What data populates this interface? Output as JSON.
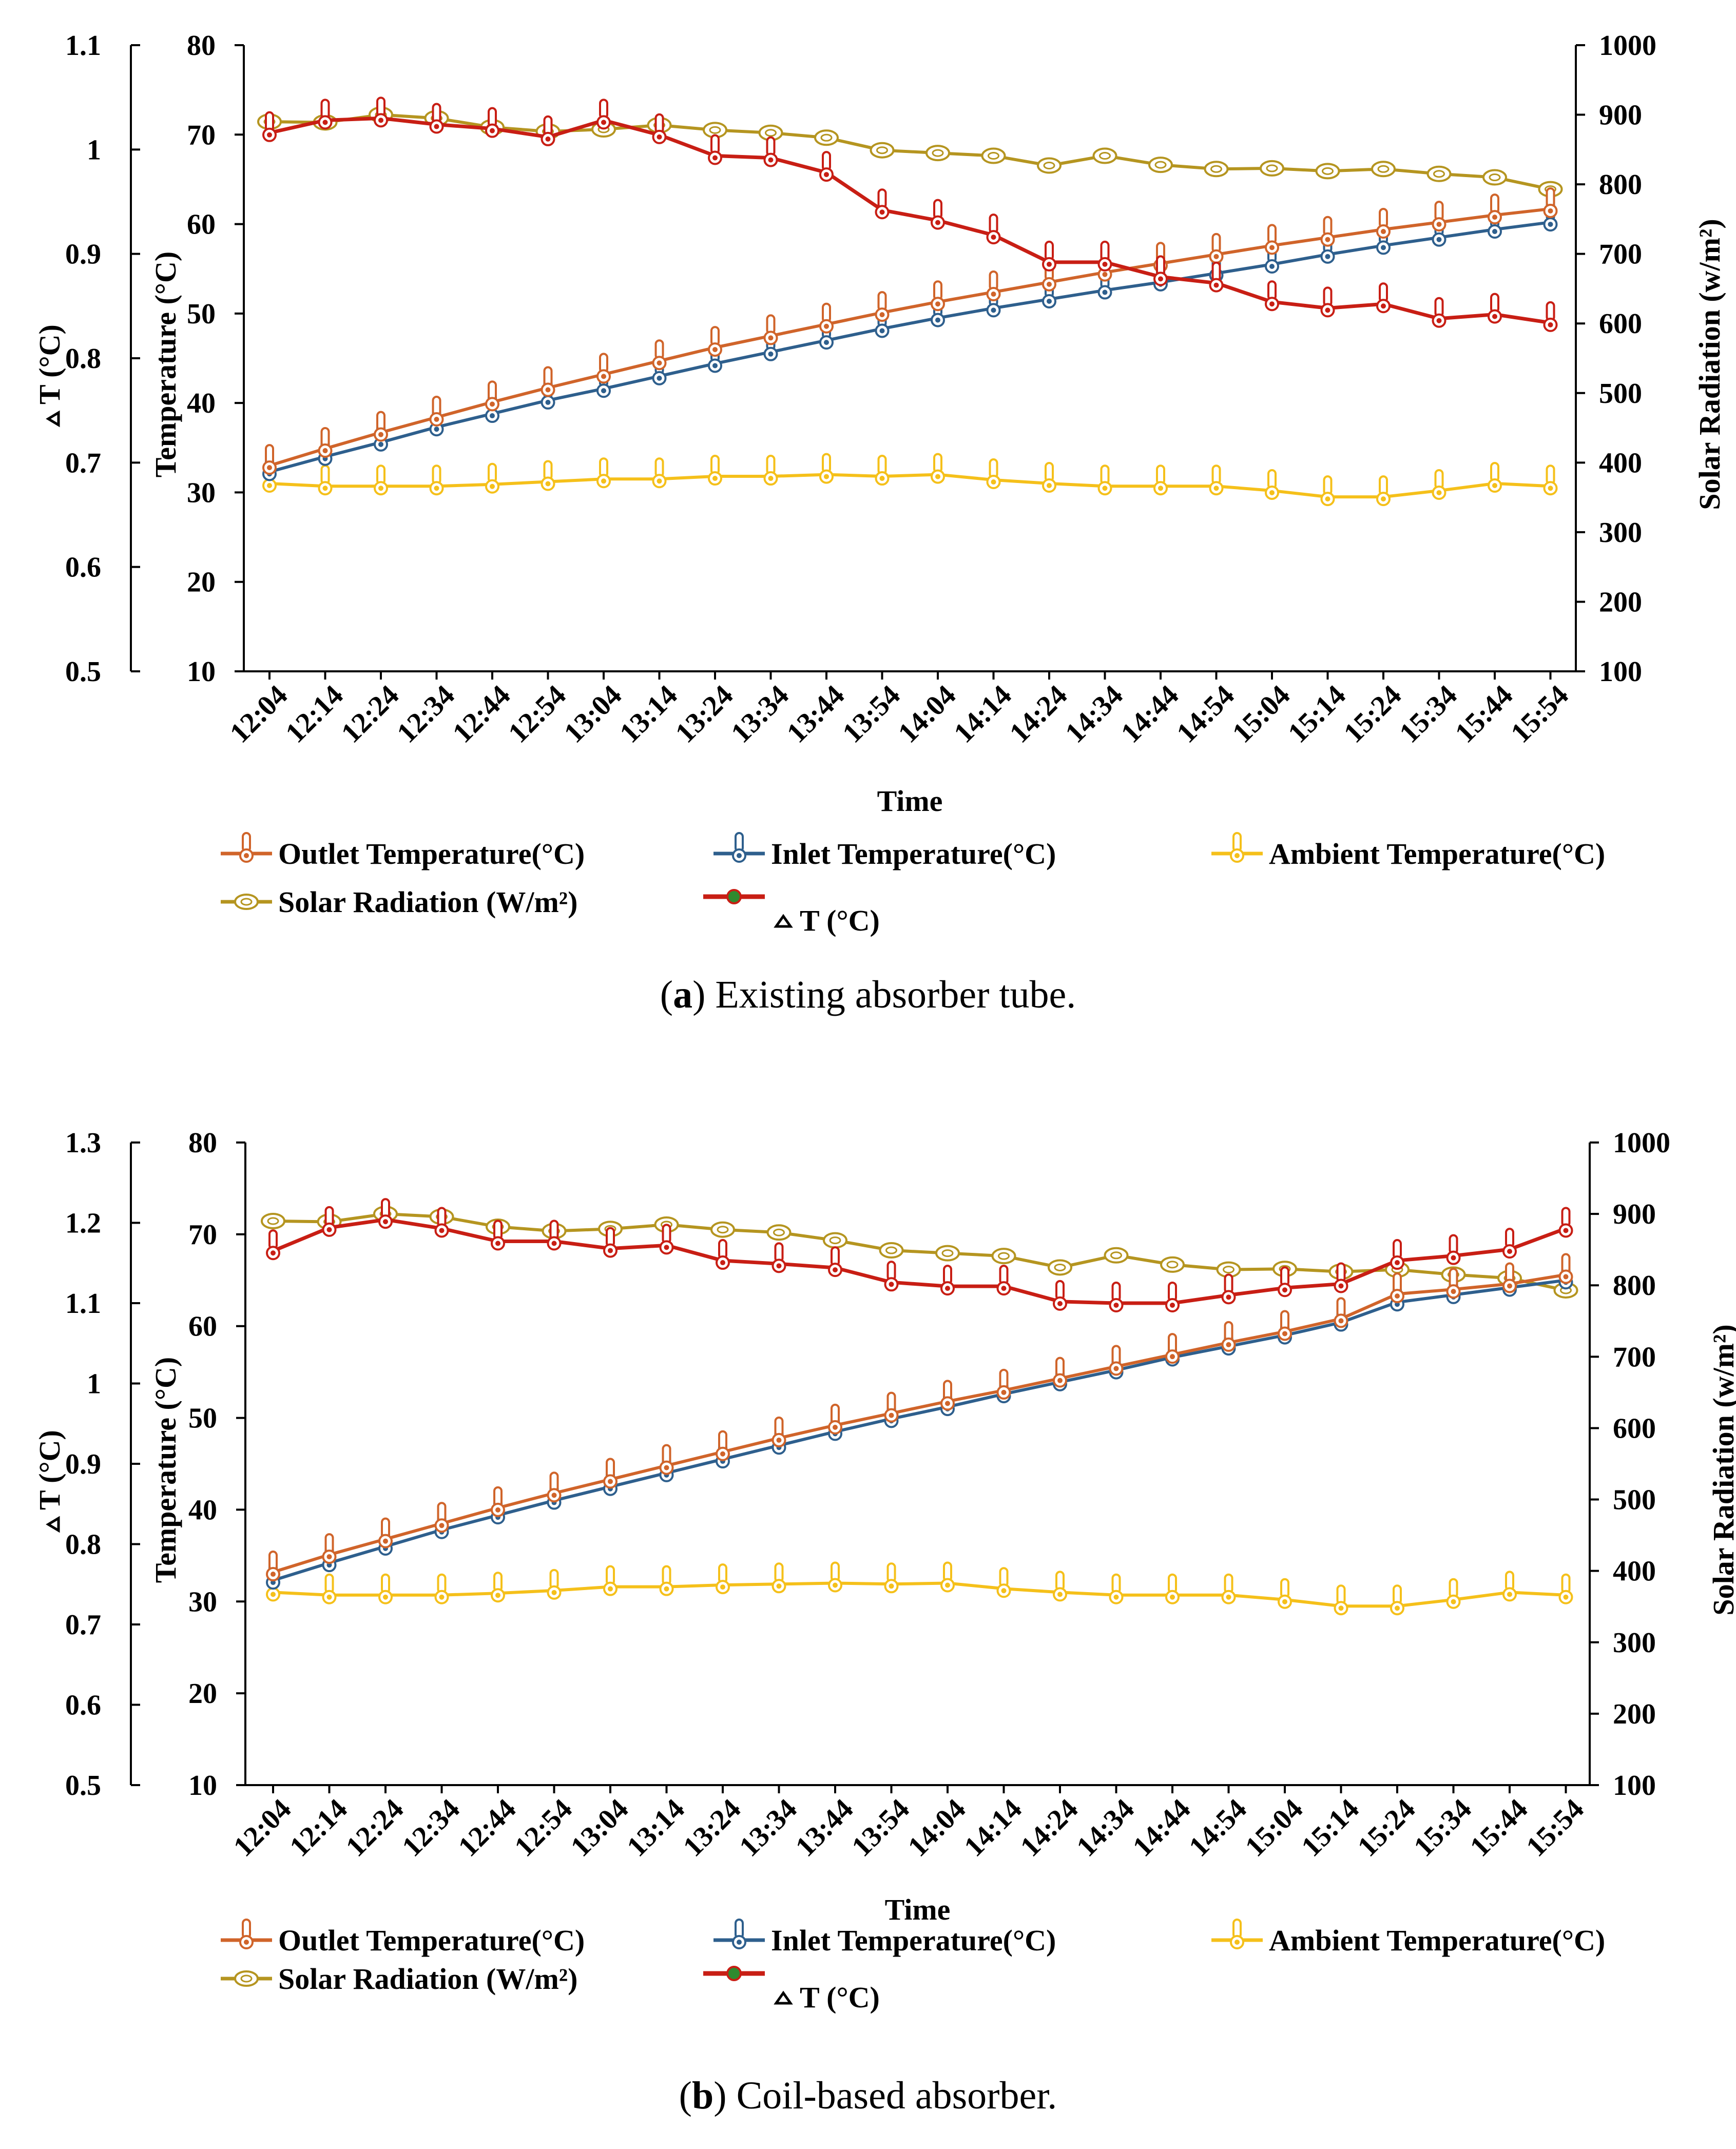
{
  "chart_data": [
    {
      "type": "line",
      "caption_letter": "a",
      "caption_text": ") Existing absorber tube.",
      "xlabel": "Time",
      "ylabel_temp": "Temperature  (°C)",
      "ylabel_dt": "T (°C)",
      "ylabel_rad": "Solar Radiation  (w/m²)",
      "temp_range": [
        10,
        80
      ],
      "temp_ticks": [
        10,
        20,
        30,
        40,
        50,
        60,
        70,
        80
      ],
      "dt_range": [
        0.5,
        1.1
      ],
      "dt_ticks": [
        "0.5",
        "0.6",
        "0.7",
        "0.8",
        "0.9",
        "1",
        "1.1"
      ],
      "rad_range": [
        100,
        1000
      ],
      "rad_ticks": [
        100,
        200,
        300,
        400,
        500,
        600,
        700,
        800,
        900,
        1000
      ],
      "x_ticks": [
        "12:04",
        "12:14",
        "12:24",
        "12:34",
        "12:44",
        "12:54",
        "13:04",
        "13:14",
        "13:24",
        "13:34",
        "13:44",
        "13:54",
        "14:04",
        "14:14",
        "14:24",
        "14:34",
        "14:44",
        "14:54",
        "15:04",
        "15:14",
        "15:24",
        "15:34",
        "15:44",
        "15:54"
      ],
      "legend": {
        "outlet": "Outlet  Temperature(°C)",
        "inlet": "Inlet Temperature(°C)",
        "ambient": "Ambient Temperature(°C)",
        "radiation": "Solar Radiation (W/m²)",
        "dt": "T (°C)"
      },
      "series": {
        "outlet": [
          33.0,
          34.9,
          36.7,
          38.4,
          40.1,
          41.7,
          43.2,
          44.7,
          46.2,
          47.5,
          48.8,
          50.1,
          51.3,
          52.4,
          53.5,
          54.6,
          55.6,
          56.6,
          57.6,
          58.5,
          59.4,
          60.2,
          61.0,
          61.7
        ],
        "inlet": [
          32.3,
          34.0,
          35.6,
          37.3,
          38.8,
          40.3,
          41.6,
          43.0,
          44.4,
          45.7,
          47.0,
          48.3,
          49.5,
          50.6,
          51.6,
          52.6,
          53.5,
          54.5,
          55.5,
          56.6,
          57.6,
          58.5,
          59.4,
          60.2
        ],
        "ambient": [
          31.0,
          30.7,
          30.7,
          30.7,
          30.9,
          31.2,
          31.5,
          31.5,
          31.8,
          31.8,
          32.0,
          31.8,
          32.0,
          31.4,
          31.0,
          30.7,
          30.7,
          30.7,
          30.2,
          29.5,
          29.5,
          30.2,
          31.0,
          30.7
        ],
        "radiation": [
          890,
          889,
          900,
          895,
          882,
          876,
          879,
          885,
          878,
          874,
          867,
          849,
          845,
          841,
          827,
          841,
          828,
          822,
          823,
          819,
          822,
          815,
          810,
          793
        ],
        "dt": [
          1.016,
          1.028,
          1.03,
          1.024,
          1.02,
          1.012,
          1.028,
          1.014,
          0.994,
          0.992,
          0.978,
          0.942,
          0.932,
          0.918,
          0.892,
          0.892,
          0.878,
          0.872,
          0.854,
          0.848,
          0.852,
          0.838,
          0.842,
          0.834
        ]
      }
    },
    {
      "type": "line",
      "caption_letter": "b",
      "caption_text": ") Coil-based absorber.",
      "xlabel": "Time",
      "ylabel_temp": "Temperature  (°C)",
      "ylabel_dt": "T (°C)",
      "ylabel_rad": "Solar Radiation  (w/m²)",
      "temp_range": [
        10,
        80
      ],
      "temp_ticks": [
        10,
        20,
        30,
        40,
        50,
        60,
        70,
        80
      ],
      "dt_range": [
        0.5,
        1.3
      ],
      "dt_ticks": [
        "0.5",
        "0.6",
        "0.7",
        "0.8",
        "0.9",
        "1",
        "1.1",
        "1.2",
        "1.3"
      ],
      "rad_range": [
        100,
        1000
      ],
      "rad_ticks": [
        100,
        200,
        300,
        400,
        500,
        600,
        700,
        800,
        900,
        1000
      ],
      "x_ticks": [
        "12:04",
        "12:14",
        "12:24",
        "12:34",
        "12:44",
        "12:54",
        "13:04",
        "13:14",
        "13:24",
        "13:34",
        "13:44",
        "13:54",
        "14:04",
        "14:14",
        "14:24",
        "14:34",
        "14:44",
        "14:54",
        "15:04",
        "15:14",
        "15:24",
        "15:34",
        "15:44",
        "15:54"
      ],
      "legend": {
        "outlet": "Outlet  Temperature(°C)",
        "inlet": "Inlet Temperature(°C)",
        "ambient": "Ambient Temperature(°C)",
        "radiation": "Solar Radiation (W/m²)",
        "dt": "T (°C)"
      },
      "series": {
        "outlet": [
          33.2,
          35.1,
          36.8,
          38.5,
          40.2,
          41.8,
          43.3,
          44.8,
          46.3,
          47.8,
          49.2,
          50.5,
          51.8,
          53.0,
          54.3,
          55.6,
          56.9,
          58.2,
          59.4,
          60.8,
          63.5,
          64.0,
          64.6,
          65.6
        ],
        "inlet": [
          32.3,
          34.2,
          36.0,
          37.8,
          39.4,
          41.0,
          42.5,
          44.0,
          45.5,
          47.0,
          48.5,
          49.9,
          51.2,
          52.6,
          53.9,
          55.2,
          56.6,
          57.8,
          59.0,
          60.4,
          62.6,
          63.4,
          64.2,
          65.0
        ],
        "ambient": [
          31.0,
          30.7,
          30.7,
          30.7,
          30.9,
          31.2,
          31.6,
          31.6,
          31.8,
          31.9,
          32.0,
          31.9,
          32.0,
          31.4,
          31.0,
          30.7,
          30.7,
          30.7,
          30.2,
          29.5,
          29.5,
          30.2,
          31.0,
          30.7
        ],
        "radiation": [
          890,
          889,
          900,
          896,
          882,
          876,
          879,
          885,
          878,
          874,
          863,
          849,
          845,
          841,
          825,
          842,
          829,
          822,
          823,
          819,
          822,
          815,
          810,
          793
        ],
        "dt": [
          1.165,
          1.194,
          1.204,
          1.193,
          1.177,
          1.177,
          1.168,
          1.172,
          1.153,
          1.149,
          1.144,
          1.126,
          1.121,
          1.121,
          1.102,
          1.1,
          1.1,
          1.11,
          1.119,
          1.124,
          1.153,
          1.159,
          1.167,
          1.193
        ]
      }
    }
  ],
  "colors": {
    "outlet": "#d0642a",
    "inlet": "#2e5f8d",
    "ambient": "#f5c01a",
    "radiation": "#b59520",
    "dt": "#c81e14",
    "dt_marker": "#2f8a2f"
  }
}
